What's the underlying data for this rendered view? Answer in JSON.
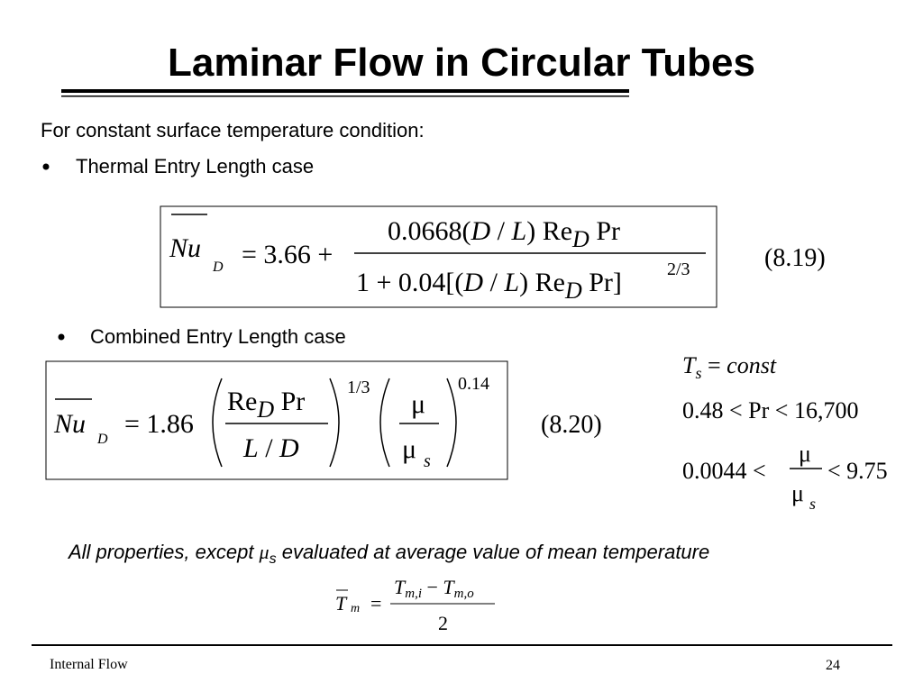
{
  "title": "Laminar Flow in Circular Tubes",
  "intro": "For constant surface temperature condition:",
  "bullets": [
    "Thermal Entry Length case",
    "Combined Entry Length case"
  ],
  "eq_8_19": {
    "lhs": "Nu",
    "lhs_sub": "D",
    "equals": "= 3.66 +",
    "num": [
      "0.0668(",
      "D",
      " / ",
      "L",
      ") Re",
      "D",
      " Pr"
    ],
    "den": [
      "1 + 0.04[(",
      "D",
      " / ",
      "L",
      ") Re",
      "D",
      " Pr]"
    ],
    "exponent": "2/3",
    "label": "(8.19)"
  },
  "eq_8_20": {
    "lhs": "Nu",
    "lhs_sub": "D",
    "equals": "= 1.86",
    "num": [
      "Re",
      "D",
      " Pr"
    ],
    "den": [
      "L",
      " / ",
      "D"
    ],
    "exponent_1": "1/3",
    "ratio_num": "μ",
    "ratio_den": "μ",
    "ratio_den_sub": "s",
    "exponent_2": "0.14",
    "label": "(8.20)"
  },
  "conditions": {
    "ts": [
      "T",
      "s",
      " = ",
      "const"
    ],
    "pr_range": "0.48 < Pr < 16,700",
    "mu_left": "0.0044 <",
    "mu_num": "μ",
    "mu_den": "μ",
    "mu_den_sub": "s",
    "mu_right": "< 9.75"
  },
  "note": [
    "All properties, except ",
    "μ",
    "s",
    " evaluated at average value of mean temperature"
  ],
  "mean_temp": {
    "lhs": "T",
    "lhs_sub": "m",
    "equals": "=",
    "num": [
      "T",
      "m,i",
      " − ",
      "T",
      "m,o"
    ],
    "den": "2"
  },
  "footer": {
    "left": "Internal Flow",
    "page": 24
  }
}
